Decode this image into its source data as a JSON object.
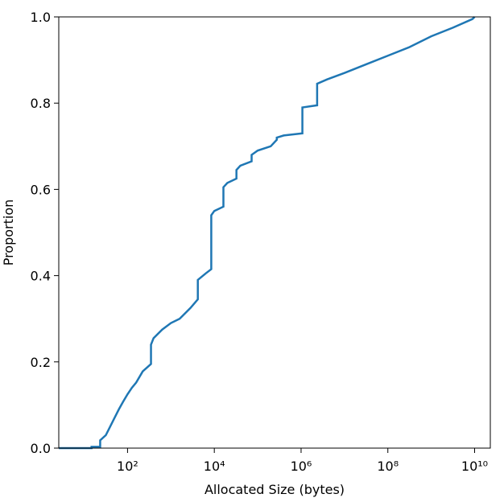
{
  "chart_data": {
    "type": "line",
    "x_label": "Allocated Size (bytes)",
    "y_label": "Proportion",
    "x_scale": "log",
    "color": "#1f77b4",
    "x": [
      2.6,
      14.8,
      14.8,
      23.4,
      23.4,
      31.6,
      39.8,
      50.1,
      63.1,
      79.4,
      100,
      126,
      158,
      224,
      347,
      347,
      398,
      631,
      1000,
      1585,
      1995,
      2818,
      4169,
      4169,
      6310,
      8511,
      8511,
      10000,
      16218,
      16218,
      19953,
      32359,
      32359,
      39811,
      72444,
      72444,
      100000,
      199526,
      275423,
      275423,
      398107,
      1071519,
      1071519,
      2344229,
      2344229,
      3981072,
      10000000,
      31622777,
      100000000,
      316227766,
      1000000000,
      3162277660,
      8912509381,
      10000000000
    ],
    "values": [
      0,
      0,
      0.003,
      0.003,
      0.018,
      0.03,
      0.05,
      0.07,
      0.09,
      0.108,
      0.125,
      0.14,
      0.152,
      0.178,
      0.195,
      0.24,
      0.255,
      0.275,
      0.29,
      0.3,
      0.31,
      0.325,
      0.345,
      0.39,
      0.405,
      0.415,
      0.54,
      0.55,
      0.56,
      0.605,
      0.615,
      0.625,
      0.645,
      0.655,
      0.665,
      0.68,
      0.69,
      0.7,
      0.715,
      0.72,
      0.725,
      0.73,
      0.79,
      0.795,
      0.845,
      0.855,
      0.87,
      0.89,
      0.91,
      0.93,
      0.955,
      0.975,
      0.995,
      1.0
    ],
    "xlim": [
      2.6,
      23000000000
    ],
    "xticks": [
      {
        "value": 100,
        "label": "10²"
      },
      {
        "value": 10000,
        "label": "10⁴"
      },
      {
        "value": 1000000,
        "label": "10⁶"
      },
      {
        "value": 100000000,
        "label": "10⁸"
      },
      {
        "value": 10000000000,
        "label": "10¹⁰"
      }
    ],
    "ylim": [
      0,
      1
    ],
    "yticks": [
      {
        "value": 0,
        "label": "0.0"
      },
      0.2,
      0.4,
      0.6,
      0.8,
      {
        "value": 1,
        "label": "1.0"
      }
    ]
  }
}
